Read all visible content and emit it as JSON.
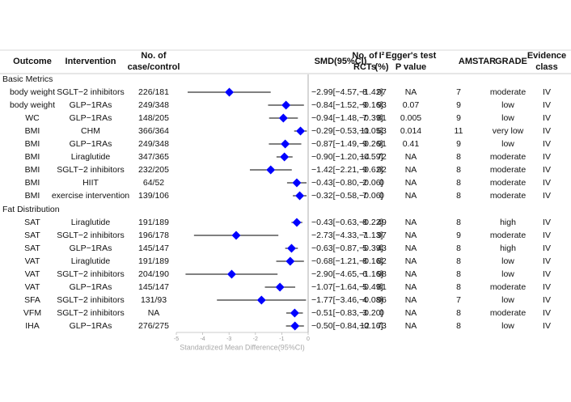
{
  "chart_data": {
    "type": "forest",
    "xlabel": "Standardized Mean Difference(95%CI)",
    "xlim": [
      -5,
      0
    ],
    "xticks": [
      -5,
      -4,
      -3,
      -2,
      -1,
      0
    ],
    "color": "#0000ff",
    "headers": {
      "outcome": [
        "Outcome"
      ],
      "intervention": [
        "Intervention"
      ],
      "cases": [
        "No. of",
        "case/control"
      ],
      "smd_label": [
        "SMD(95%CI)"
      ],
      "rcts": [
        "No. of",
        "RCTs"
      ],
      "i2": [
        "I²",
        "(%)"
      ],
      "egger": [
        "Egger's test",
        "P value"
      ],
      "amstar": [
        "AMSTAR"
      ],
      "grade": [
        "GRADE"
      ],
      "evidence": [
        "Evidence",
        "class"
      ]
    },
    "groups": [
      {
        "name": "Basic Metrics",
        "rows": [
          {
            "outcome": "body weight",
            "intervention": "SGLT−2 inhibitors",
            "cases": "226/181",
            "smd_label": "−2.99[−4.57,−1.42]",
            "smd": -2.99,
            "lo": -4.57,
            "hi": -1.42,
            "rcts": 8,
            "i2": 97,
            "egger": "NA",
            "amstar": 7,
            "grade": "moderate",
            "evidence": "IV"
          },
          {
            "outcome": "body weight",
            "intervention": "GLP−1RAs",
            "cases": "249/348",
            "smd_label": "−0.84[−1.52,−0.16]",
            "smd": -0.84,
            "lo": -1.52,
            "hi": -0.16,
            "rcts": 9,
            "i2": 93,
            "egger": 0.07,
            "amstar": 9,
            "grade": "low",
            "evidence": "IV"
          },
          {
            "outcome": "WC",
            "intervention": "GLP−1RAs",
            "cases": "148/205",
            "smd_label": "−0.94[−1.48,−0.39]",
            "smd": -0.94,
            "lo": -1.48,
            "hi": -0.39,
            "rcts": 7,
            "i2": 81,
            "egger": 0.005,
            "amstar": 9,
            "grade": "low",
            "evidence": "IV"
          },
          {
            "outcome": "BMI",
            "intervention": "CHM",
            "cases": "366/364",
            "smd_label": "−0.29[−0.53,−0.05]",
            "smd": -0.29,
            "lo": -0.53,
            "hi": -0.05,
            "rcts": 11,
            "i2": 63,
            "egger": 0.014,
            "amstar": 11,
            "grade": "very low",
            "evidence": "IV"
          },
          {
            "outcome": "BMI",
            "intervention": "GLP−1RAs",
            "cases": "249/348",
            "smd_label": "−0.87[−1.49,−0.26]",
            "smd": -0.87,
            "lo": -1.49,
            "hi": -0.26,
            "rcts": 9,
            "i2": 91,
            "egger": 0.41,
            "amstar": 9,
            "grade": "low",
            "evidence": "IV"
          },
          {
            "outcome": "BMI",
            "intervention": "Liraglutide",
            "cases": "347/365",
            "smd_label": "−0.90[−1.20,−0.59]",
            "smd": -0.9,
            "lo": -1.2,
            "hi": -0.59,
            "rcts": 14,
            "i2": 72,
            "egger": "NA",
            "amstar": 8,
            "grade": "moderate",
            "evidence": "IV"
          },
          {
            "outcome": "BMI",
            "intervention": "SGLT−2 inhibitors",
            "cases": "232/205",
            "smd_label": "−1.42[−2.21,−0.62]",
            "smd": -1.42,
            "lo": -2.21,
            "hi": -0.62,
            "rcts": 9,
            "i2": 92,
            "egger": "NA",
            "amstar": 8,
            "grade": "moderate",
            "evidence": "IV"
          },
          {
            "outcome": "BMI",
            "intervention": "HIIT",
            "cases": "64/52",
            "smd_label": "−0.43[−0.80,−0.06]",
            "smd": -0.43,
            "lo": -0.8,
            "hi": -0.06,
            "rcts": 2,
            "i2": 0,
            "egger": "NA",
            "amstar": 8,
            "grade": "moderate",
            "evidence": "IV"
          },
          {
            "outcome": "BMI",
            "intervention": "exercise intervention",
            "cases": "139/106",
            "smd_label": "−0.32[−0.58,−0.06]",
            "smd": -0.32,
            "lo": -0.58,
            "hi": -0.06,
            "rcts": 7,
            "i2": 0,
            "egger": "NA",
            "amstar": 8,
            "grade": "moderate",
            "evidence": "IV"
          }
        ]
      },
      {
        "name": "Fat Distribution",
        "rows": [
          {
            "outcome": "SAT",
            "intervention": "Liraglutide",
            "cases": "191/189",
            "smd_label": "−0.43[−0.63,−0.22]",
            "smd": -0.43,
            "lo": -0.63,
            "hi": -0.22,
            "rcts": 8,
            "i2": 49,
            "egger": "NA",
            "amstar": 8,
            "grade": "high",
            "evidence": "IV"
          },
          {
            "outcome": "SAT",
            "intervention": "SGLT−2 inhibitors",
            "cases": "196/178",
            "smd_label": "−2.73[−4.33,−1.13]",
            "smd": -2.73,
            "lo": -4.33,
            "hi": -1.13,
            "rcts": 7,
            "i2": 97,
            "egger": "NA",
            "amstar": 9,
            "grade": "moderate",
            "evidence": "IV"
          },
          {
            "outcome": "SAT",
            "intervention": "GLP−1RAs",
            "cases": "145/147",
            "smd_label": "−0.63[−0.87,−0.39]",
            "smd": -0.63,
            "lo": -0.87,
            "hi": -0.39,
            "rcts": 5,
            "i2": 43,
            "egger": "NA",
            "amstar": 8,
            "grade": "high",
            "evidence": "IV"
          },
          {
            "outcome": "VAT",
            "intervention": "Liraglutide",
            "cases": "191/189",
            "smd_label": "−0.68[−1.21,−0.16]",
            "smd": -0.68,
            "lo": -1.21,
            "hi": -0.16,
            "rcts": 8,
            "i2": 82,
            "egger": "NA",
            "amstar": 8,
            "grade": "low",
            "evidence": "IV"
          },
          {
            "outcome": "VAT",
            "intervention": "SGLT−2 inhibitors",
            "cases": "204/190",
            "smd_label": "−2.90[−4.65,−1.16]",
            "smd": -2.9,
            "lo": -4.65,
            "hi": -1.16,
            "rcts": 6,
            "i2": 98,
            "egger": "NA",
            "amstar": 8,
            "grade": "low",
            "evidence": "IV"
          },
          {
            "outcome": "VAT",
            "intervention": "GLP−1RAs",
            "cases": "145/147",
            "smd_label": "−1.07[−1.64,−0.49]",
            "smd": -1.07,
            "lo": -1.64,
            "hi": -0.49,
            "rcts": 5,
            "i2": 81,
            "egger": "NA",
            "amstar": 8,
            "grade": "moderate",
            "evidence": "IV"
          },
          {
            "outcome": "SFA",
            "intervention": "SGLT−2 inhibitors",
            "cases": "131/93",
            "smd_label": "−1.77[−3.46,−0.08]",
            "smd": -1.77,
            "lo": -3.46,
            "hi": -0.08,
            "rcts": 4,
            "i2": 96,
            "egger": "NA",
            "amstar": 7,
            "grade": "low",
            "evidence": "IV"
          },
          {
            "outcome": "VFM",
            "intervention": "SGLT−2 inhibitors",
            "cases": "NA",
            "smd_label": "−0.51[−0.83,−0.20]",
            "smd": -0.51,
            "lo": -0.83,
            "hi": -0.2,
            "rcts": 3,
            "i2": 0,
            "egger": "NA",
            "amstar": 8,
            "grade": "moderate",
            "evidence": "IV"
          },
          {
            "outcome": "IHA",
            "intervention": "GLP−1RAs",
            "cases": "276/275",
            "smd_label": "−0.50[−0.84,−0.16]",
            "smd": -0.5,
            "lo": -0.84,
            "hi": -0.16,
            "rcts": 12,
            "i2": 73,
            "egger": "NA",
            "amstar": 8,
            "grade": "low",
            "evidence": "IV"
          }
        ]
      }
    ]
  }
}
